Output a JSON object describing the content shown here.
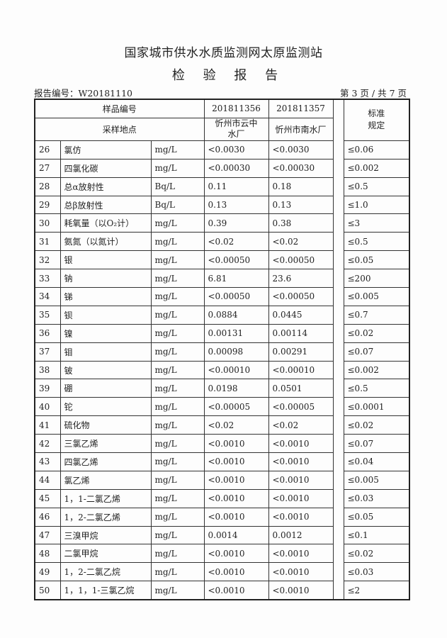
{
  "title": "国家城市供水水质监测网太原监测站",
  "subtitle": "检 验 报 告",
  "report_no": "报告编号：W20181110",
  "page_no": "第 3 页 / 共 7 页",
  "header": {
    "sample_no_label": "样品编号",
    "sample_site_label": "采样地点",
    "standard_label": "标准规定",
    "samples": [
      {
        "no": "201811356",
        "site": "忻州市云中水厂"
      },
      {
        "no": "201811357",
        "site": "忻州市南水厂"
      }
    ]
  },
  "rows": [
    [
      "26",
      "氯仿",
      "mg/L",
      "<0.0030",
      "<0.0030",
      "≤0.06"
    ],
    [
      "27",
      "四氯化碳",
      "mg/L",
      "<0.00030",
      "<0.00030",
      "≤0.002"
    ],
    [
      "28",
      "总α放射性",
      "Bq/L",
      "0.11",
      "0.18",
      "≤0.5"
    ],
    [
      "29",
      "总β放射性",
      "Bq/L",
      "0.13",
      "0.13",
      "≤1.0"
    ],
    [
      "30",
      "耗氧量（以O₂计）",
      "mg/L",
      "0.39",
      "0.38",
      "≤3"
    ],
    [
      "31",
      "氨氮（以氮计）",
      "mg/L",
      "<0.02",
      "<0.02",
      "≤0.5"
    ],
    [
      "32",
      "银",
      "mg/L",
      "<0.00050",
      "<0.00050",
      "≤0.05"
    ],
    [
      "33",
      "钠",
      "mg/L",
      "6.81",
      "23.6",
      "≤200"
    ],
    [
      "34",
      "锑",
      "mg/L",
      "<0.00050",
      "<0.00050",
      "≤0.005"
    ],
    [
      "35",
      "钡",
      "mg/L",
      "0.0884",
      "0.0445",
      "≤0.7"
    ],
    [
      "36",
      "镍",
      "mg/L",
      "0.00131",
      "0.00114",
      "≤0.02"
    ],
    [
      "37",
      "钼",
      "mg/L",
      "0.00098",
      "0.00291",
      "≤0.07"
    ],
    [
      "38",
      "铍",
      "mg/L",
      "<0.00010",
      "<0.00010",
      "≤0.002"
    ],
    [
      "39",
      "硼",
      "mg/L",
      "0.0198",
      "0.0501",
      "≤0.5"
    ],
    [
      "40",
      "铊",
      "mg/L",
      "<0.00005",
      "<0.00005",
      "≤0.0001"
    ],
    [
      "41",
      "硫化物",
      "mg/L",
      "<0.02",
      "<0.02",
      "≤0.02"
    ],
    [
      "42",
      "三氯乙烯",
      "mg/L",
      "<0.0010",
      "<0.0010",
      "≤0.07"
    ],
    [
      "43",
      "四氯乙烯",
      "mg/L",
      "<0.0010",
      "<0.0010",
      "≤0.04"
    ],
    [
      "44",
      "氯乙烯",
      "mg/L",
      "<0.0010",
      "<0.0010",
      "≤0.005"
    ],
    [
      "45",
      "1，1-二氯乙烯",
      "mg/L",
      "<0.0010",
      "<0.0010",
      "≤0.03"
    ],
    [
      "46",
      "1，2-二氯乙烯",
      "mg/L",
      "<0.0010",
      "<0.0010",
      "≤0.05"
    ],
    [
      "47",
      "三溴甲烷",
      "mg/L",
      "0.0014",
      "0.0012",
      "≤0.1"
    ],
    [
      "48",
      "二氯甲烷",
      "mg/L",
      "<0.0010",
      "<0.0010",
      "≤0.02"
    ],
    [
      "49",
      "1，2-二氯乙烷",
      "mg/L",
      "<0.0010",
      "<0.0010",
      "≤0.03"
    ],
    [
      "50",
      "1，1，1-三氯乙烷",
      "mg/L",
      "<0.0010",
      "<0.0010",
      "≤2"
    ]
  ]
}
